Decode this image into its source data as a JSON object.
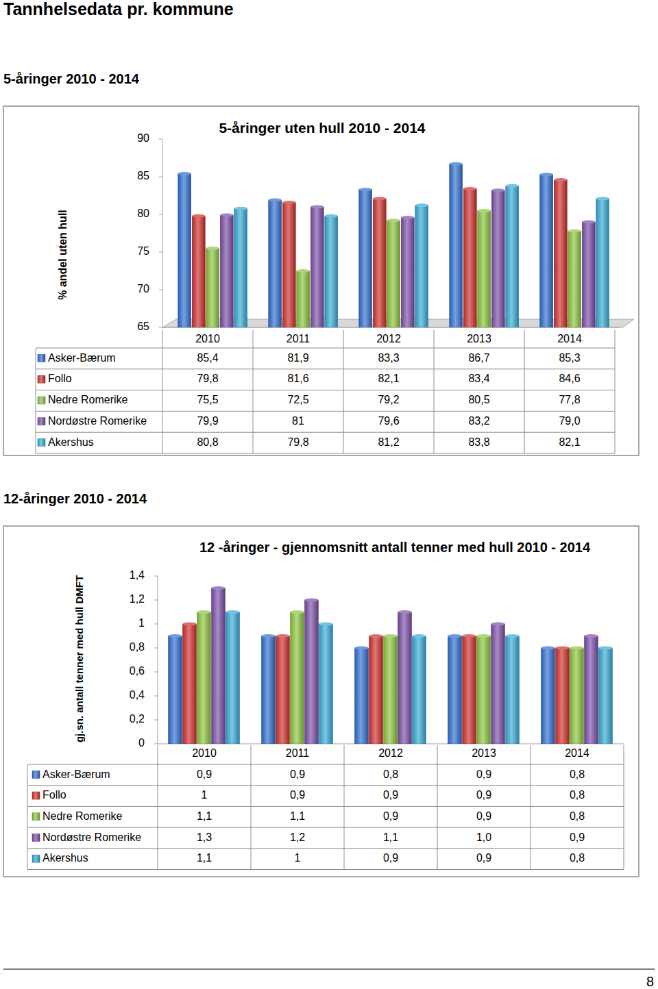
{
  "page": {
    "title": "Tannhelsedata pr. kommune",
    "sections": [
      "5-åringer 2010 - 2014",
      "12-åringer 2010 - 2014"
    ],
    "page_number": "8"
  },
  "chart_data": [
    {
      "type": "bar",
      "title": "5-åringer uten hull 2010 - 2014",
      "y_label": "% andel uten hull",
      "categories": [
        "2010",
        "2011",
        "2012",
        "2013",
        "2014"
      ],
      "series": [
        {
          "name": "Asker-Bærum",
          "color": "#2f6fd1",
          "values": [
            85.4,
            81.9,
            83.3,
            86.7,
            85.3
          ],
          "value_labels": [
            "85,4",
            "81,9",
            "83,3",
            "86,7",
            "85,3"
          ]
        },
        {
          "name": "Follo",
          "color": "#d0302c",
          "values": [
            79.8,
            81.6,
            82.1,
            83.4,
            84.6
          ],
          "value_labels": [
            "79,8",
            "81,6",
            "82,1",
            "83,4",
            "84,6"
          ]
        },
        {
          "name": "Nedre Romerike",
          "color": "#8cc43c",
          "values": [
            75.5,
            72.5,
            79.2,
            80.5,
            77.8
          ],
          "value_labels": [
            "75,5",
            "72,5",
            "79,2",
            "80,5",
            "77,8"
          ]
        },
        {
          "name": "Nordøstre Romerike",
          "color": "#7b4ea8",
          "values": [
            79.9,
            81,
            79.6,
            83.2,
            79.0
          ],
          "value_labels": [
            "79,9",
            "81",
            "79,6",
            "83,2",
            "79,0"
          ]
        },
        {
          "name": "Akershus",
          "color": "#35abd6",
          "values": [
            80.8,
            79.8,
            81.2,
            83.8,
            82.1
          ],
          "value_labels": [
            "80,8",
            "79,8",
            "81,2",
            "83,8",
            "82,1"
          ]
        }
      ],
      "ylim": [
        65,
        90
      ],
      "yticks": [
        65,
        70,
        75,
        80,
        85,
        90
      ],
      "grid": false
    },
    {
      "type": "bar",
      "title": "12 -åringer - gjennomsnitt antall tenner med hull 2010 - 2014",
      "y_label": "gj.sn. antall tenner med hull DMFT",
      "categories": [
        "2010",
        "2011",
        "2012",
        "2013",
        "2014"
      ],
      "series": [
        {
          "name": "Asker-Bærum",
          "color": "#2f6fd1",
          "values": [
            0.9,
            0.9,
            0.8,
            0.9,
            0.8
          ],
          "value_labels": [
            "0,9",
            "0,9",
            "0,8",
            "0,9",
            "0,8"
          ]
        },
        {
          "name": "Follo",
          "color": "#d0302c",
          "values": [
            1,
            0.9,
            0.9,
            0.9,
            0.8
          ],
          "value_labels": [
            "1",
            "0,9",
            "0,9",
            "0,9",
            "0,8"
          ]
        },
        {
          "name": "Nedre Romerike",
          "color": "#8cc43c",
          "values": [
            1.1,
            1.1,
            0.9,
            0.9,
            0.8
          ],
          "value_labels": [
            "1,1",
            "1,1",
            "0,9",
            "0,9",
            "0,8"
          ]
        },
        {
          "name": "Nordøstre Romerike",
          "color": "#7b4ea8",
          "values": [
            1.3,
            1.2,
            1.1,
            1.0,
            0.9
          ],
          "value_labels": [
            "1,3",
            "1,2",
            "1,1",
            "1,0",
            "0,9"
          ]
        },
        {
          "name": "Akershus",
          "color": "#35abd6",
          "values": [
            1.1,
            1,
            0.9,
            0.9,
            0.8
          ],
          "value_labels": [
            "1,1",
            "1",
            "0,9",
            "0,9",
            "0,8"
          ]
        }
      ],
      "ylim": [
        0,
        1.4
      ],
      "yticks": [
        0,
        {
          "value": 0.2,
          "label": "0,2"
        },
        {
          "value": 0.4,
          "label": "0,4"
        },
        {
          "value": 0.6,
          "label": "0,6"
        },
        {
          "value": 0.8,
          "label": "0,8"
        },
        1,
        {
          "value": 1.2,
          "label": "1,2"
        },
        {
          "value": 1.4,
          "label": "1,4"
        }
      ],
      "grid": false
    }
  ]
}
